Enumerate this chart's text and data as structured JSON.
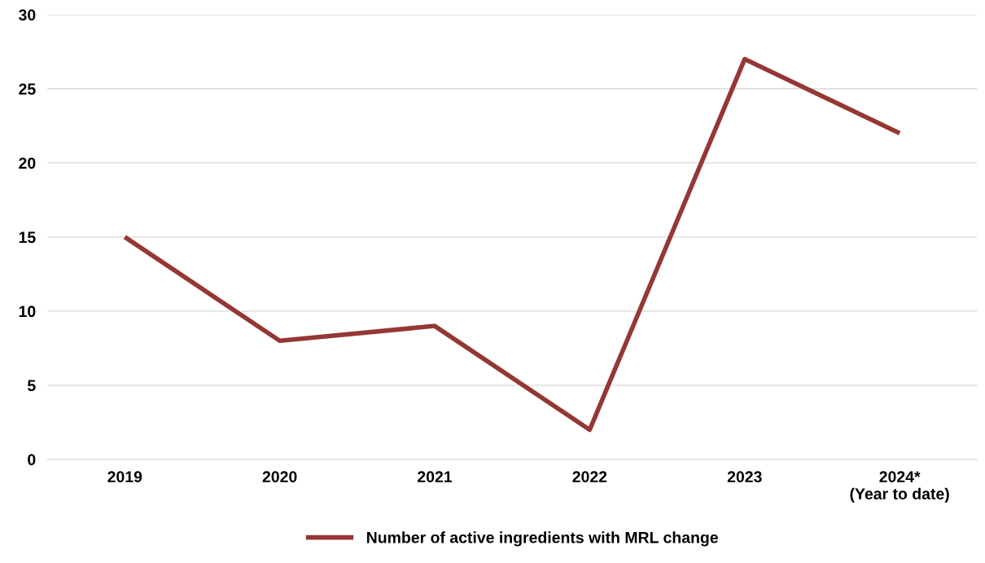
{
  "chart_data": {
    "type": "line",
    "categories": [
      "2019",
      "2020",
      "2021",
      "2022",
      "2023",
      "2024*\n(Year to date)"
    ],
    "series": [
      {
        "name": "Number of active ingredients with MRL change",
        "color": "#953735",
        "values": [
          15,
          8,
          9,
          2,
          27,
          22
        ]
      }
    ],
    "ylim": [
      0,
      30
    ],
    "yticks": [
      0,
      5,
      10,
      15,
      20,
      25,
      30
    ],
    "grid": "y",
    "legend": "bottom",
    "marker": "none",
    "line_style": "solid"
  }
}
